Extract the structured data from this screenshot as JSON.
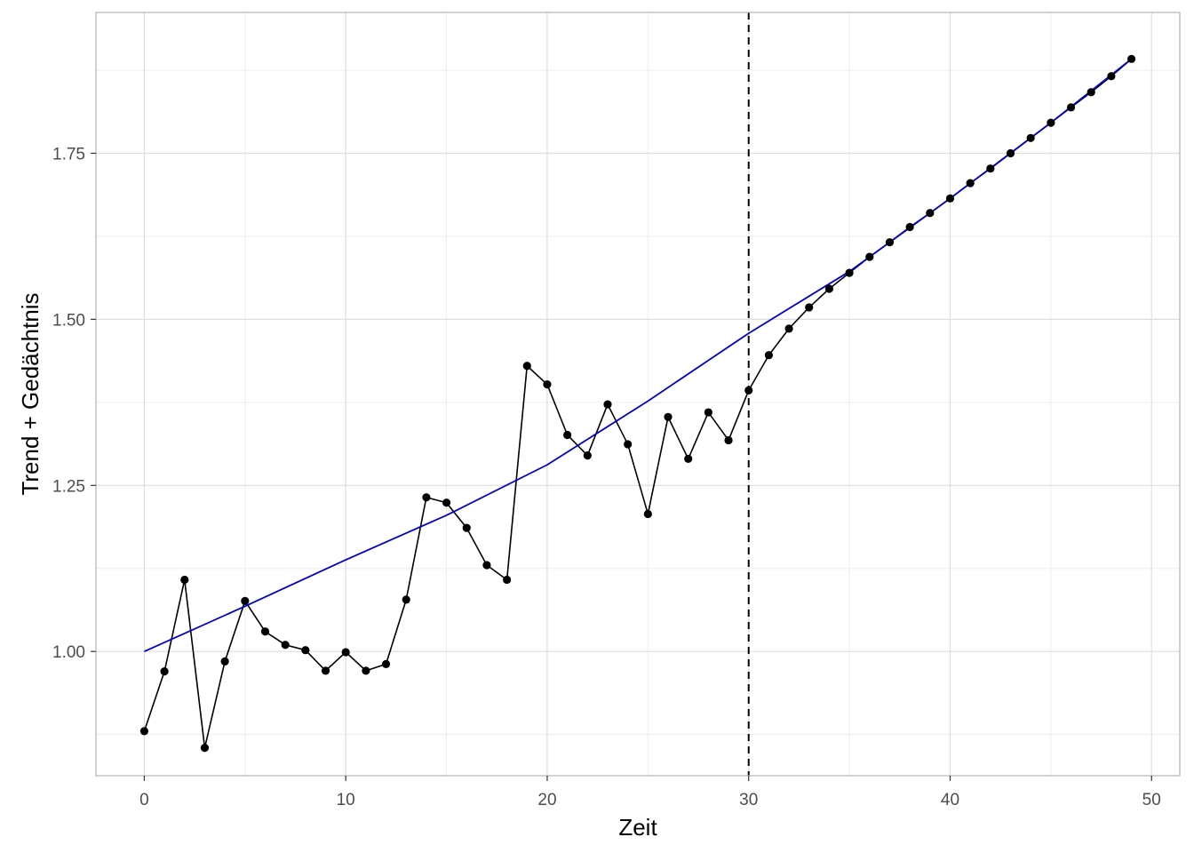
{
  "chart_data": {
    "type": "line",
    "xlabel": "Zeit",
    "ylabel": "Trend + Gedächtnis",
    "xlim": [
      -2.4,
      51.4
    ],
    "ylim": [
      0.813,
      1.962
    ],
    "x_ticks": [
      0,
      10,
      20,
      30,
      40,
      50
    ],
    "x_tick_labels": [
      "0",
      "10",
      "20",
      "30",
      "40",
      "50"
    ],
    "y_ticks": [
      1.0,
      1.25,
      1.5,
      1.75
    ],
    "y_tick_labels": [
      "1.00",
      "1.25",
      "1.50",
      "1.75"
    ],
    "grid": true,
    "vline": {
      "x": 30,
      "style": "dashed",
      "color": "#000000"
    },
    "series": [
      {
        "kind": "line+points",
        "color": "#000000",
        "x": [
          0,
          1,
          2,
          3,
          4,
          5,
          6,
          7,
          8,
          9,
          10,
          11,
          12,
          13,
          14,
          15,
          16,
          17,
          18,
          19,
          20,
          21,
          22,
          23,
          24,
          25,
          26,
          27,
          28,
          29,
          30,
          31,
          32,
          33,
          34,
          35,
          36,
          37,
          38,
          39,
          40,
          41,
          42,
          43,
          44,
          45,
          46,
          47,
          48,
          49
        ],
        "y": [
          0.88,
          0.97,
          1.108,
          0.855,
          0.985,
          1.076,
          1.03,
          1.01,
          1.002,
          0.971,
          0.999,
          0.971,
          0.981,
          1.078,
          1.232,
          1.224,
          1.186,
          1.13,
          1.108,
          1.43,
          1.402,
          1.326,
          1.295,
          1.372,
          1.312,
          1.207,
          1.353,
          1.29,
          1.36,
          1.318,
          1.393,
          1.446,
          1.486,
          1.518,
          1.546,
          1.57,
          1.594,
          1.616,
          1.639,
          1.66,
          1.682,
          1.705,
          1.727,
          1.75,
          1.773,
          1.796,
          1.819,
          1.842,
          1.866,
          1.892
        ]
      },
      {
        "kind": "line",
        "color": "#0000cd",
        "x": [
          0,
          5,
          10,
          15,
          20,
          25,
          30,
          35,
          40,
          45,
          49
        ],
        "y": [
          1.0,
          1.068,
          1.138,
          1.205,
          1.281,
          1.377,
          1.479,
          1.572,
          1.682,
          1.796,
          1.892
        ]
      }
    ]
  },
  "colors": {
    "background": "#ffffff",
    "panel_border": "#b3b3b3",
    "grid_major": "#dedede",
    "grid_minor": "#ededed",
    "observed": "#000000",
    "trend": "#0000cd"
  }
}
